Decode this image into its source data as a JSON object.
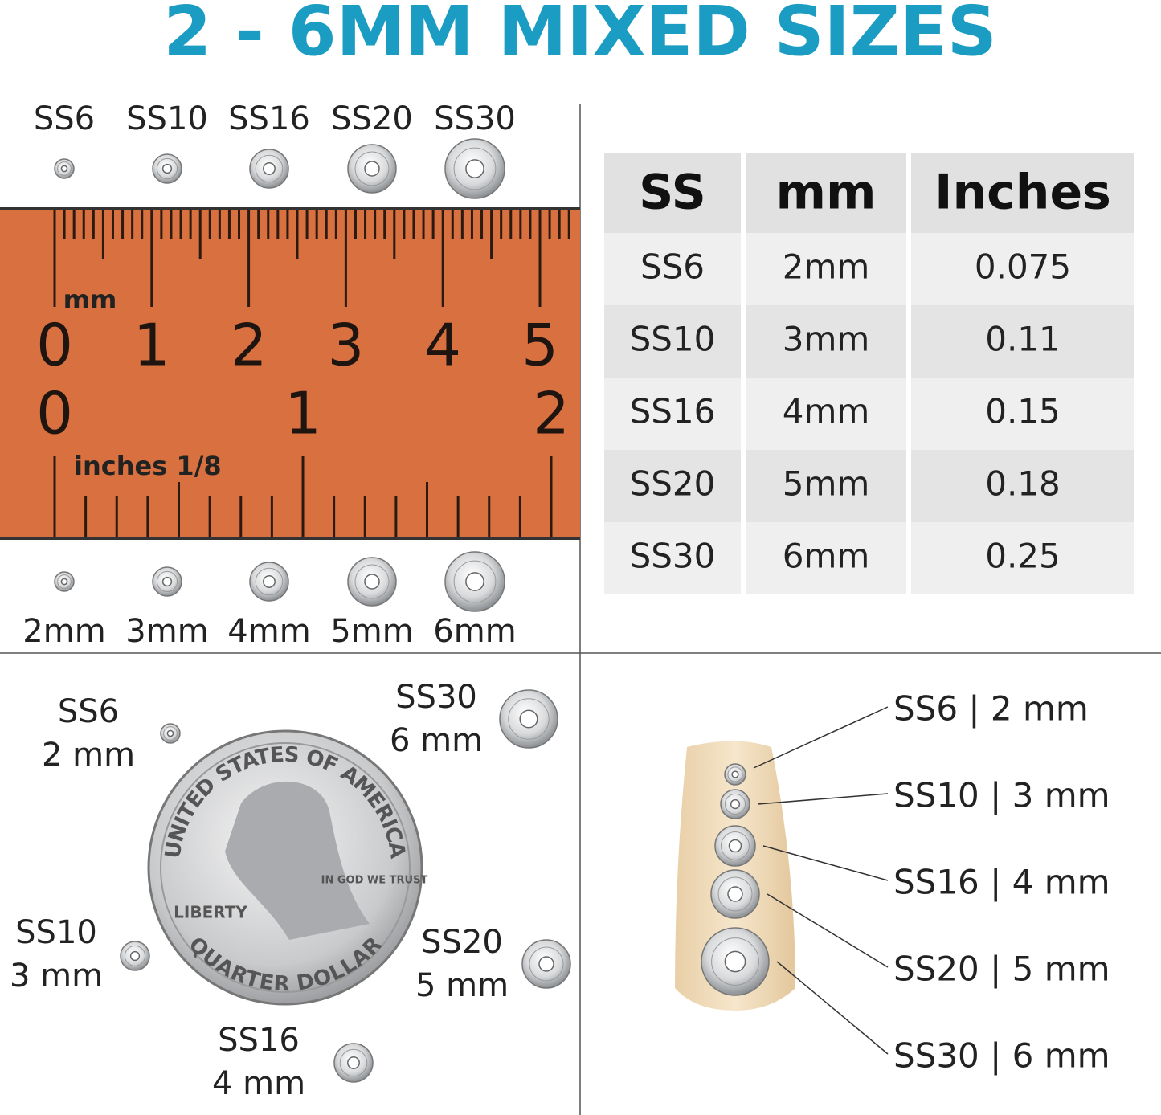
{
  "title": "2 - 6MM MIXED SIZES",
  "ruler": {
    "top_labels": [
      "SS6",
      "SS10",
      "SS16",
      "SS20",
      "SS30"
    ],
    "mm_unit": "mm",
    "mm_numbers": [
      "0",
      "1",
      "2",
      "3",
      "4",
      "5"
    ],
    "inch_numbers": [
      "0",
      "1",
      "2"
    ],
    "inch_unit": "inches 1/8",
    "bottom_labels": [
      "2mm",
      "3mm",
      "4mm",
      "5mm",
      "6mm"
    ]
  },
  "table": {
    "header": [
      "SS",
      "mm",
      "Inches"
    ],
    "rows": [
      [
        "SS6",
        "2mm",
        "0.075"
      ],
      [
        "SS10",
        "3mm",
        "0.11"
      ],
      [
        "SS16",
        "4mm",
        "0.15"
      ],
      [
        "SS20",
        "5mm",
        "0.18"
      ],
      [
        "SS30",
        "6mm",
        "0.25"
      ]
    ]
  },
  "coin": {
    "labels": [
      {
        "size": "SS6",
        "mm": "2 mm"
      },
      {
        "size": "SS30",
        "mm": "6 mm"
      },
      {
        "size": "SS10",
        "mm": "3 mm"
      },
      {
        "size": "SS20",
        "mm": "5 mm"
      },
      {
        "size": "SS16",
        "mm": "4 mm"
      }
    ],
    "text": {
      "top": "UNITED STATES OF AMERICA",
      "bottom": "QUARTER DOLLAR",
      "left": "LIBERTY",
      "motto": "IN GOD WE TRUST"
    }
  },
  "nail": {
    "labels": [
      "SS6 | 2 mm",
      "SS10 | 3 mm",
      "SS16 | 4 mm",
      "SS20 | 5 mm",
      "SS30 | 6 mm"
    ]
  }
}
